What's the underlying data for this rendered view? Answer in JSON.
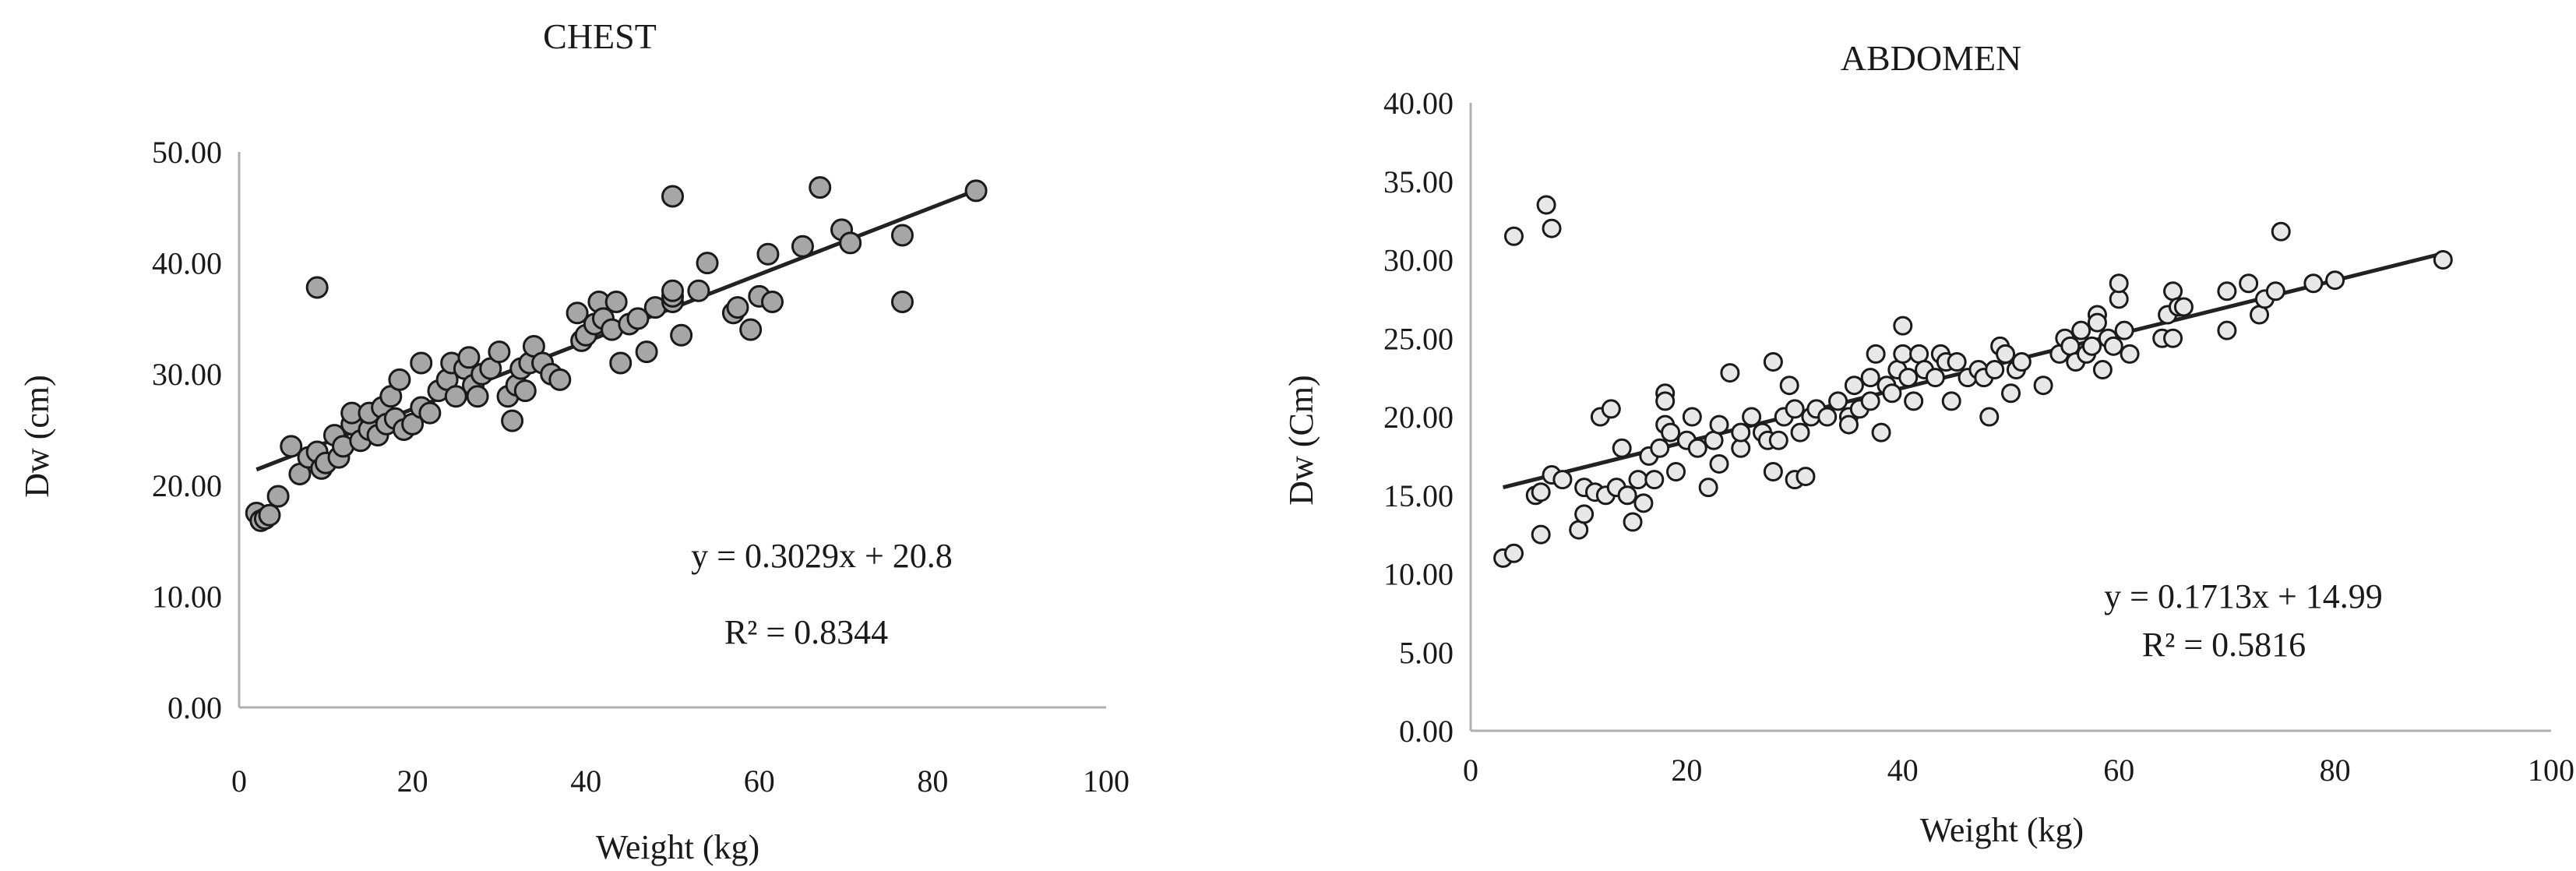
{
  "chart_data": [
    {
      "type": "scatter",
      "title": "CHEST",
      "xlabel": "Weight (kg)",
      "ylabel": "Dw (cm)",
      "xlim": [
        0,
        100
      ],
      "ylim": [
        0,
        50
      ],
      "xticks": [
        "0",
        "20",
        "40",
        "60",
        "80",
        "100"
      ],
      "yticks": [
        "0.00",
        "10.00",
        "20.00",
        "30.00",
        "40.00",
        "50.00"
      ],
      "grid": false,
      "legend": "none",
      "marker_color": "#a6a6a6",
      "trendline": {
        "slope": 0.3029,
        "intercept": 20.8,
        "x_range": [
          2,
          85
        ]
      },
      "annotations": [
        "y = 0.3029x + 20.8",
        "R² = 0.8344"
      ],
      "points": [
        [
          2,
          17.5
        ],
        [
          2.5,
          16.8
        ],
        [
          3,
          17.0
        ],
        [
          3.5,
          17.3
        ],
        [
          4.5,
          19.0
        ],
        [
          6,
          23.5
        ],
        [
          7,
          21.0
        ],
        [
          8,
          22.5
        ],
        [
          9,
          23.0
        ],
        [
          9.5,
          21.5
        ],
        [
          9,
          37.8
        ],
        [
          10,
          22.0
        ],
        [
          11,
          24.5
        ],
        [
          11.5,
          22.5
        ],
        [
          12,
          23.5
        ],
        [
          13,
          25.5
        ],
        [
          13,
          26.5
        ],
        [
          14,
          24.0
        ],
        [
          15,
          25.0
        ],
        [
          15,
          26.5
        ],
        [
          16,
          24.5
        ],
        [
          16.5,
          27.0
        ],
        [
          17,
          25.5
        ],
        [
          17.5,
          28.0
        ],
        [
          18,
          26.0
        ],
        [
          18.5,
          29.5
        ],
        [
          19,
          25.0
        ],
        [
          20,
          25.5
        ],
        [
          21,
          27.0
        ],
        [
          21,
          31.0
        ],
        [
          22,
          26.5
        ],
        [
          23,
          28.5
        ],
        [
          24,
          29.5
        ],
        [
          24.5,
          31.0
        ],
        [
          25,
          28.0
        ],
        [
          26,
          30.5
        ],
        [
          26.5,
          31.5
        ],
        [
          27,
          29.0
        ],
        [
          27.5,
          28.0
        ],
        [
          28,
          30.0
        ],
        [
          29,
          30.5
        ],
        [
          30,
          32.0
        ],
        [
          31,
          28.0
        ],
        [
          31.5,
          25.8
        ],
        [
          32,
          29.0
        ],
        [
          32.5,
          30.5
        ],
        [
          33,
          28.5
        ],
        [
          33.5,
          31.0
        ],
        [
          34,
          32.5
        ],
        [
          35,
          31.0
        ],
        [
          36,
          30.0
        ],
        [
          37,
          29.5
        ],
        [
          39,
          35.5
        ],
        [
          39.5,
          33.0
        ],
        [
          40,
          33.5
        ],
        [
          41,
          34.5
        ],
        [
          41.5,
          36.5
        ],
        [
          42,
          35.0
        ],
        [
          43,
          34.0
        ],
        [
          43.5,
          36.5
        ],
        [
          44,
          31.0
        ],
        [
          45,
          34.5
        ],
        [
          46,
          35.0
        ],
        [
          47,
          32.0
        ],
        [
          48,
          36.0
        ],
        [
          50,
          36.5
        ],
        [
          50,
          37.0
        ],
        [
          50,
          37.5
        ],
        [
          50,
          46.0
        ],
        [
          51,
          33.5
        ],
        [
          53,
          37.5
        ],
        [
          54,
          40.0
        ],
        [
          57,
          35.5
        ],
        [
          57.5,
          36.0
        ],
        [
          59,
          34.0
        ],
        [
          60,
          37.0
        ],
        [
          61,
          40.8
        ],
        [
          61.5,
          36.5
        ],
        [
          65,
          41.5
        ],
        [
          67,
          46.8
        ],
        [
          69.5,
          43.0
        ],
        [
          70.5,
          41.8
        ],
        [
          76.5,
          42.5
        ],
        [
          76.5,
          36.5
        ],
        [
          85,
          46.5
        ]
      ]
    },
    {
      "type": "scatter",
      "title": "ABDOMEN",
      "xlabel": "Weight  (kg)",
      "ylabel": "Dw (Cm)",
      "xlim": [
        0,
        100
      ],
      "ylim": [
        0,
        40
      ],
      "xticks": [
        "0",
        "20",
        "40",
        "60",
        "80",
        "100"
      ],
      "yticks": [
        "0.00",
        "5.00",
        "10.00",
        "15.00",
        "20.00",
        "25.00",
        "30.00",
        "35.00",
        "40.00"
      ],
      "grid": false,
      "legend": "none",
      "marker_color": "#e8e8e8",
      "trendline": {
        "slope": 0.1713,
        "intercept": 14.99,
        "x_range": [
          3,
          90
        ]
      },
      "annotations": [
        "y = 0.1713x + 14.99",
        "R² = 0.5816"
      ],
      "points": [
        [
          3,
          11.0
        ],
        [
          4,
          11.3
        ],
        [
          4,
          31.5
        ],
        [
          6,
          15.0
        ],
        [
          6.5,
          15.2
        ],
        [
          6.5,
          12.5
        ],
        [
          7,
          33.5
        ],
        [
          7.5,
          32.0
        ],
        [
          7.5,
          16.3
        ],
        [
          8.5,
          16.0
        ],
        [
          10,
          12.8
        ],
        [
          10.5,
          13.8
        ],
        [
          10.5,
          15.5
        ],
        [
          11.5,
          15.2
        ],
        [
          12,
          20.0
        ],
        [
          12.5,
          15.0
        ],
        [
          13,
          20.5
        ],
        [
          13.5,
          15.5
        ],
        [
          14,
          18.0
        ],
        [
          14.5,
          15.0
        ],
        [
          15,
          13.3
        ],
        [
          15.5,
          16.0
        ],
        [
          16,
          14.5
        ],
        [
          16.5,
          17.5
        ],
        [
          17,
          16.0
        ],
        [
          17.5,
          18.0
        ],
        [
          18,
          21.5
        ],
        [
          18,
          21.0
        ],
        [
          18,
          19.5
        ],
        [
          18.5,
          19.0
        ],
        [
          19,
          16.5
        ],
        [
          20,
          18.5
        ],
        [
          20.5,
          20.0
        ],
        [
          21,
          18.0
        ],
        [
          22,
          15.5
        ],
        [
          22.5,
          18.5
        ],
        [
          23,
          19.5
        ],
        [
          23,
          17.0
        ],
        [
          24,
          22.8
        ],
        [
          25,
          18.0
        ],
        [
          25,
          19.0
        ],
        [
          26,
          20.0
        ],
        [
          27,
          19.0
        ],
        [
          27.5,
          18.5
        ],
        [
          28,
          23.5
        ],
        [
          28,
          16.5
        ],
        [
          28.5,
          18.5
        ],
        [
          29,
          20.0
        ],
        [
          29.5,
          22.0
        ],
        [
          30,
          20.5
        ],
        [
          30,
          16.0
        ],
        [
          30.5,
          19.0
        ],
        [
          31,
          16.2
        ],
        [
          31.5,
          20.0
        ],
        [
          32,
          20.5
        ],
        [
          33,
          20.0
        ],
        [
          34,
          21.0
        ],
        [
          35,
          20.0
        ],
        [
          35,
          19.5
        ],
        [
          35.5,
          22.0
        ],
        [
          36,
          20.5
        ],
        [
          37,
          22.5
        ],
        [
          37,
          21.0
        ],
        [
          37.5,
          24.0
        ],
        [
          38,
          19.0
        ],
        [
          38.5,
          22.0
        ],
        [
          39,
          21.5
        ],
        [
          39.5,
          23.0
        ],
        [
          40,
          25.8
        ],
        [
          40,
          24.0
        ],
        [
          40.5,
          22.5
        ],
        [
          41,
          21.0
        ],
        [
          41.5,
          24.0
        ],
        [
          42,
          23.0
        ],
        [
          43,
          22.5
        ],
        [
          43.5,
          24.0
        ],
        [
          44,
          23.5
        ],
        [
          44.5,
          21.0
        ],
        [
          45,
          23.5
        ],
        [
          46,
          22.5
        ],
        [
          47,
          23.0
        ],
        [
          47.5,
          22.5
        ],
        [
          48,
          20.0
        ],
        [
          48.5,
          23.0
        ],
        [
          49,
          24.5
        ],
        [
          49.5,
          24.0
        ],
        [
          50,
          21.5
        ],
        [
          50.5,
          23.0
        ],
        [
          51,
          23.5
        ],
        [
          53,
          22.0
        ],
        [
          54.5,
          24.0
        ],
        [
          55,
          25.0
        ],
        [
          55.5,
          24.5
        ],
        [
          56,
          23.5
        ],
        [
          56.5,
          25.5
        ],
        [
          57,
          24.0
        ],
        [
          57.5,
          24.5
        ],
        [
          58,
          26.5
        ],
        [
          58,
          26.0
        ],
        [
          58.5,
          23.0
        ],
        [
          59,
          25.0
        ],
        [
          59.5,
          24.5
        ],
        [
          60,
          27.5
        ],
        [
          60,
          28.5
        ],
        [
          60.5,
          25.5
        ],
        [
          61,
          24.0
        ],
        [
          64,
          25.0
        ],
        [
          64.5,
          26.5
        ],
        [
          65,
          28.0
        ],
        [
          65,
          25.0
        ],
        [
          65.5,
          27.0
        ],
        [
          66,
          27.0
        ],
        [
          70,
          28.0
        ],
        [
          70,
          25.5
        ],
        [
          72,
          28.5
        ],
        [
          73,
          26.5
        ],
        [
          73.5,
          27.5
        ],
        [
          74.5,
          28.0
        ],
        [
          75,
          31.8
        ],
        [
          78,
          28.5
        ],
        [
          80,
          28.7
        ],
        [
          90,
          30.0
        ]
      ]
    }
  ]
}
